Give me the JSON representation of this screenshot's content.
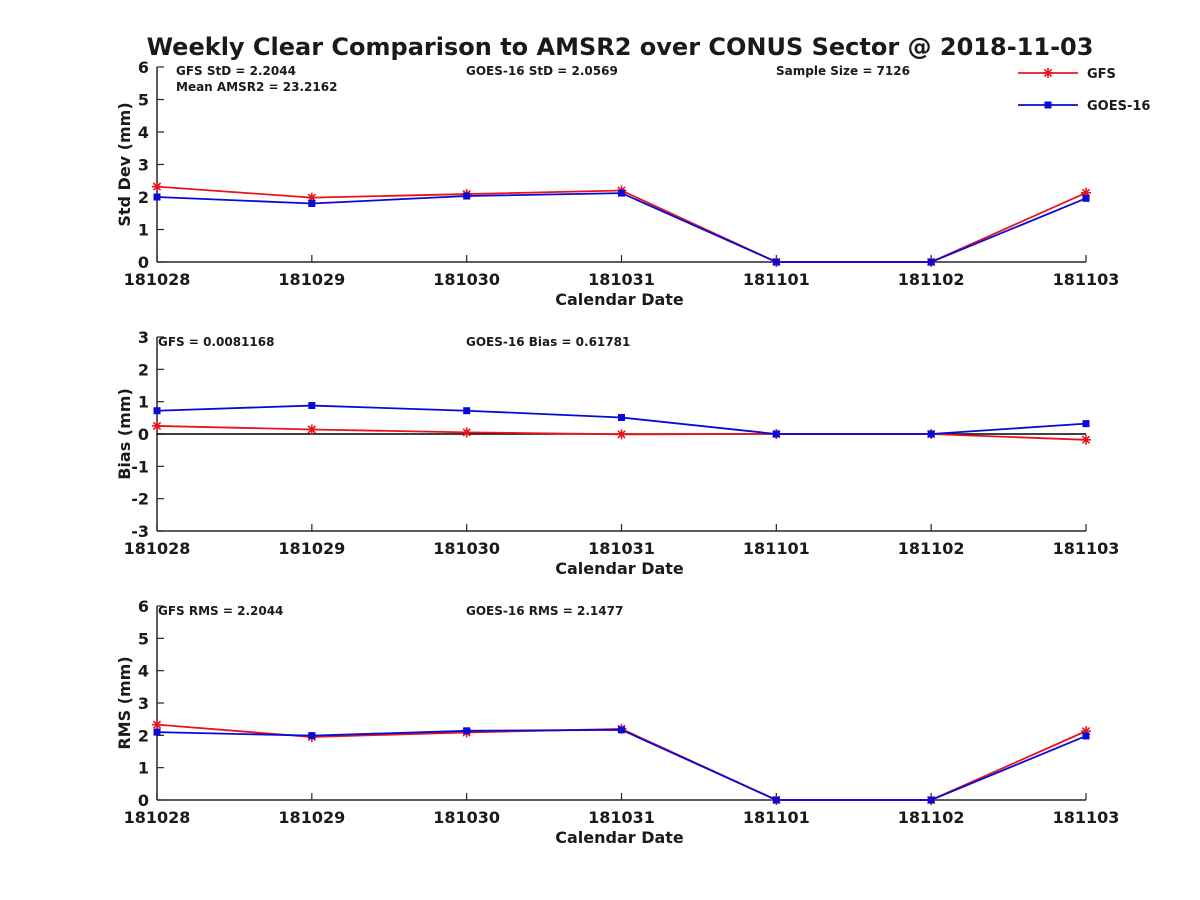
{
  "title": "Weekly Clear Comparison to AMSR2 over CONUS Sector @ 2018-11-03",
  "colors": {
    "gfs": "#e8141c",
    "goes16": "#0a0ad6",
    "axis": "#262626",
    "zero_line": "#000000"
  },
  "legend": {
    "placement": "top-right",
    "items": [
      {
        "label": "GFS",
        "color": "#e8141c",
        "marker": "asterisk"
      },
      {
        "label": "GOES-16",
        "color": "#0a0ad6",
        "marker": "square"
      }
    ]
  },
  "chart_data": [
    {
      "type": "line",
      "ylabel": "Std Dev (mm)",
      "xlabel": "Calendar Date",
      "ylim": [
        0,
        6
      ],
      "yticks": [
        "0",
        "1",
        "2",
        "3",
        "4",
        "5",
        "6"
      ],
      "categories": [
        "181028",
        "181029",
        "181030",
        "181031",
        "181101",
        "181102",
        "181103"
      ],
      "series": [
        {
          "name": "GFS",
          "values": [
            2.32,
            1.98,
            2.09,
            2.2,
            0,
            0,
            2.13
          ]
        },
        {
          "name": "GOES-16",
          "values": [
            2.0,
            1.8,
            2.03,
            2.12,
            0,
            0,
            1.96
          ]
        }
      ],
      "annotations": [
        "GFS StD = 2.2044",
        "Mean AMSR2 = 23.2162",
        "GOES-16 StD = 2.0569",
        "Sample Size = 7126"
      ]
    },
    {
      "type": "line",
      "ylabel": "Bias (mm)",
      "xlabel": "Calendar Date",
      "ylim": [
        -3,
        3
      ],
      "yticks": [
        "-3",
        "-2",
        "-1",
        "0",
        "1",
        "2",
        "3"
      ],
      "zero_line": true,
      "categories": [
        "181028",
        "181029",
        "181030",
        "181031",
        "181101",
        "181102",
        "181103"
      ],
      "series": [
        {
          "name": "GFS",
          "values": [
            0.25,
            0.14,
            0.05,
            -0.01,
            0,
            0,
            -0.18
          ]
        },
        {
          "name": "GOES-16",
          "values": [
            0.72,
            0.88,
            0.72,
            0.51,
            0,
            0,
            0.32
          ]
        }
      ],
      "annotations": [
        "GFS = 0.0081168",
        "GOES-16 Bias  = 0.61781"
      ]
    },
    {
      "type": "line",
      "ylabel": "RMS (mm)",
      "xlabel": "Calendar Date",
      "ylim": [
        0,
        6
      ],
      "yticks": [
        "0",
        "1",
        "2",
        "3",
        "4",
        "5",
        "6"
      ],
      "categories": [
        "181028",
        "181029",
        "181030",
        "181031",
        "181101",
        "181102",
        "181103"
      ],
      "series": [
        {
          "name": "GFS",
          "values": [
            2.33,
            1.95,
            2.09,
            2.2,
            0,
            0,
            2.13
          ]
        },
        {
          "name": "GOES-16",
          "values": [
            2.1,
            1.99,
            2.14,
            2.17,
            0,
            0,
            1.98
          ]
        }
      ],
      "annotations": [
        "GFS RMS = 2.2044",
        "GOES-16 RMS = 2.1477"
      ]
    }
  ]
}
